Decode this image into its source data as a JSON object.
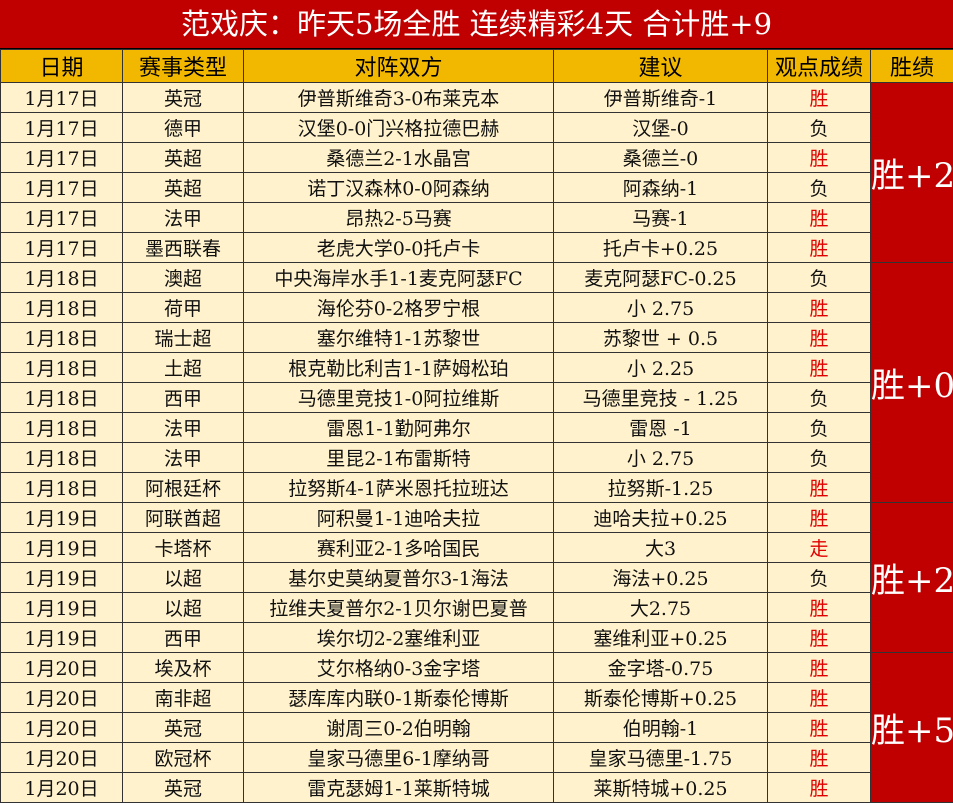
{
  "title": "范戏庆：昨天5场全胜 连续精彩4天 合计胜+9",
  "headers": [
    "日期",
    "赛事类型",
    "对阵双方",
    "建议",
    "观点成绩",
    "胜绩"
  ],
  "colors": {
    "title_bg": "#c00000",
    "header_bg": "#f2b800",
    "row_bg": "#fff2cc",
    "win_text": "#e00000",
    "summary_bg": "#c00000"
  },
  "rows": [
    {
      "date": "1月17日",
      "league": "英冠",
      "match": "伊普斯维奇3-0布莱克本",
      "pick": "伊普斯维奇-1",
      "result": "胜"
    },
    {
      "date": "1月17日",
      "league": "德甲",
      "match": "汉堡0-0门兴格拉德巴赫",
      "pick": "汉堡-0",
      "result": "负"
    },
    {
      "date": "1月17日",
      "league": "英超",
      "match": "桑德兰2-1水晶宫",
      "pick": "桑德兰-0",
      "result": "胜"
    },
    {
      "date": "1月17日",
      "league": "英超",
      "match": "诺丁汉森林0-0阿森纳",
      "pick": "阿森纳-1",
      "result": "负"
    },
    {
      "date": "1月17日",
      "league": "法甲",
      "match": "昂热2-5马赛",
      "pick": "马赛-1",
      "result": "胜"
    },
    {
      "date": "1月17日",
      "league": "墨西联春",
      "match": "老虎大学0-0托卢卡",
      "pick": "托卢卡+0.25",
      "result": "胜"
    },
    {
      "date": "1月18日",
      "league": "澳超",
      "match": "中央海岸水手1-1麦克阿瑟FC",
      "pick": "麦克阿瑟FC-0.25",
      "result": "负"
    },
    {
      "date": "1月18日",
      "league": "荷甲",
      "match": "海伦芬0-2格罗宁根",
      "pick": "小 2.75",
      "result": "胜"
    },
    {
      "date": "1月18日",
      "league": "瑞士超",
      "match": "塞尔维特1-1苏黎世",
      "pick": "苏黎世 + 0.5",
      "result": "胜"
    },
    {
      "date": "1月18日",
      "league": "土超",
      "match": "根克勒比利吉1-1萨姆松珀",
      "pick": "小 2.25",
      "result": "胜"
    },
    {
      "date": "1月18日",
      "league": "西甲",
      "match": "马德里竞技1-0阿拉维斯",
      "pick": "马德里竞技 - 1.25",
      "result": "负"
    },
    {
      "date": "1月18日",
      "league": "法甲",
      "match": "雷恩1-1勤阿弗尔",
      "pick": "雷恩 -1",
      "result": "负"
    },
    {
      "date": "1月18日",
      "league": "法甲",
      "match": "里昆2-1布雷斯特",
      "pick": "小 2.75",
      "result": "负"
    },
    {
      "date": "1月18日",
      "league": "阿根廷杯",
      "match": "拉努斯4-1萨米恩托拉班达",
      "pick": "拉努斯-1.25",
      "result": "胜"
    },
    {
      "date": "1月19日",
      "league": "阿联酋超",
      "match": "阿积曼1-1迪哈夫拉",
      "pick": "迪哈夫拉+0.25",
      "result": "胜"
    },
    {
      "date": "1月19日",
      "league": "卡塔杯",
      "match": "赛利亚2-1多哈国民",
      "pick": "大3",
      "result": "走"
    },
    {
      "date": "1月19日",
      "league": "以超",
      "match": "基尔史莫纳夏普尔3-1海法",
      "pick": "海法+0.25",
      "result": "负"
    },
    {
      "date": "1月19日",
      "league": "以超",
      "match": "拉维夫夏普尔2-1贝尔谢巴夏普",
      "pick": "大2.75",
      "result": "胜"
    },
    {
      "date": "1月19日",
      "league": "西甲",
      "match": "埃尔切2-2塞维利亚",
      "pick": "塞维利亚+0.25",
      "result": "胜"
    },
    {
      "date": "1月20日",
      "league": "埃及杯",
      "match": "艾尔格纳0-3金字塔",
      "pick": "金字塔-0.75",
      "result": "胜"
    },
    {
      "date": "1月20日",
      "league": "南非超",
      "match": "瑟库库内联0-1斯泰伦博斯",
      "pick": "斯泰伦博斯+0.25",
      "result": "胜"
    },
    {
      "date": "1月20日",
      "league": "英冠",
      "match": "谢周三0-2伯明翰",
      "pick": "伯明翰-1",
      "result": "胜"
    },
    {
      "date": "1月20日",
      "league": "欧冠杯",
      "match": "皇家马德里6-1摩纳哥",
      "pick": "皇家马德里-1.75",
      "result": "胜"
    },
    {
      "date": "1月20日",
      "league": "英冠",
      "match": "雷克瑟姆1-1莱斯特城",
      "pick": "莱斯特城+0.25",
      "result": "胜"
    }
  ],
  "summaries": [
    {
      "label": "胜+2",
      "rows": 6
    },
    {
      "label": "胜+0",
      "rows": 8
    },
    {
      "label": "胜+2",
      "rows": 5
    },
    {
      "label": "胜+5",
      "rows": 5
    }
  ]
}
